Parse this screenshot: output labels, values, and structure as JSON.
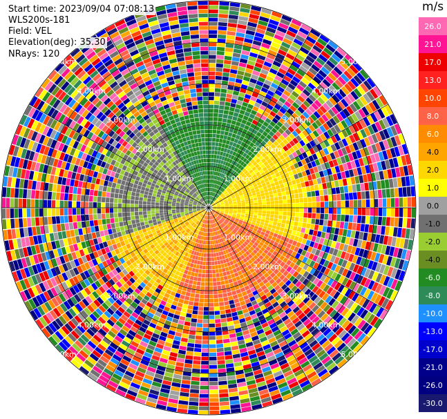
{
  "info": {
    "start_time": "Start time: 2023/09/04 07:08:13",
    "site": "WLS200s-181",
    "field": "Field: VEL",
    "elevation": "Elevation(deg): 35.30",
    "nrays": "NRays: 120"
  },
  "colorbar": {
    "unit": "m/s",
    "ticks": [
      "26.0",
      "21.0",
      "17.0",
      "13.0",
      "10.0",
      "8.0",
      "6.0",
      "4.0",
      "2.0",
      "1.0",
      "0.0",
      "-1.0",
      "-2.0",
      "-4.0",
      "-6.0",
      "-8.0",
      "-10.0",
      "-13.0",
      "-17.0",
      "-21.0",
      "-26.0",
      "-30.0"
    ],
    "colors": [
      "#ff69b4",
      "#ff1493",
      "#ee0000",
      "#ff2020",
      "#ff4500",
      "#ff6347",
      "#ff8c00",
      "#ffa500",
      "#ffd700",
      "#ffff00",
      "#a0a0a0",
      "#707070",
      "#9acd32",
      "#6b8e23",
      "#228b22",
      "#2e8b57",
      "#1e90ff",
      "#0000ff",
      "#0000cd",
      "#00008b",
      "#000080",
      "#191970"
    ]
  },
  "chart_data": {
    "type": "heatmap",
    "projection": "PPI polar",
    "field": "VEL",
    "units": "m/s",
    "range_rings_km": [
      1.0,
      2.0,
      3.0,
      4.0,
      5.0
    ],
    "ring_labels": [
      "1.00km",
      "2.00km",
      "3.00km",
      "4.00km",
      "5.00km"
    ],
    "n_rays": 120,
    "vmin": -30.0,
    "vmax": 26.0,
    "near_field_valid_range_km": 2.3,
    "near_field_pattern": [
      {
        "sector": "north",
        "velocity_range": [
          -10.0,
          -4.0
        ]
      },
      {
        "sector": "west",
        "velocity_range": [
          -2.0,
          0.0
        ]
      },
      {
        "sector": "east",
        "velocity_range": [
          1.0,
          4.0
        ]
      },
      {
        "sector": "south-east",
        "velocity_range": [
          6.0,
          10.0
        ]
      },
      {
        "sector": "south-west",
        "velocity_range": [
          2.0,
          6.0
        ]
      }
    ],
    "far_field": "noise (all colors)"
  }
}
